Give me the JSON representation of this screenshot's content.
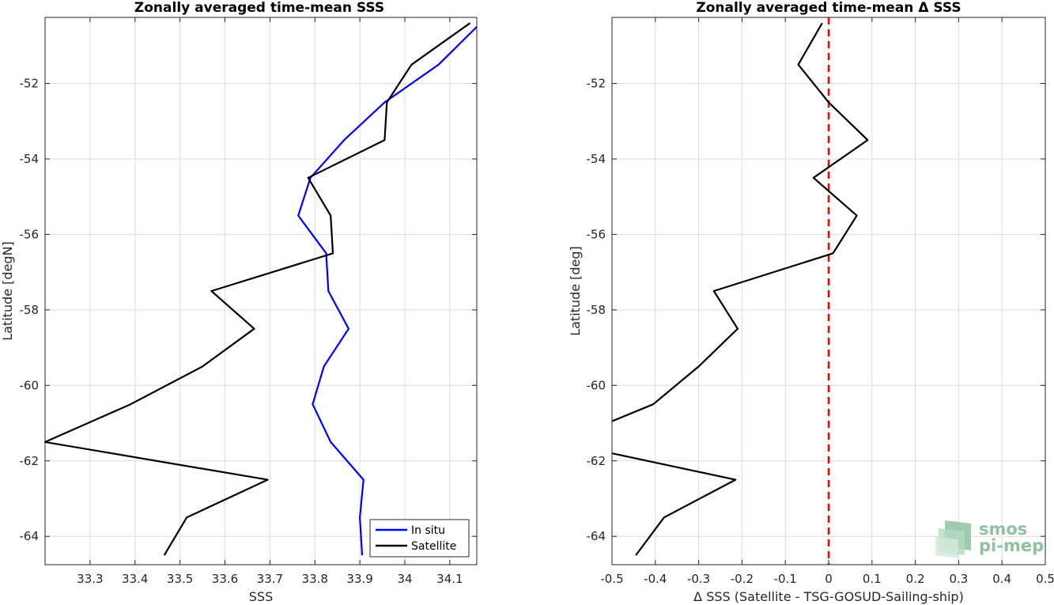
{
  "chart_data": [
    {
      "type": "line",
      "title": "Zonally averaged time-mean SSS",
      "xlabel": "SSS",
      "ylabel": "Latitude [degN]",
      "xlim": [
        33.2,
        34.16
      ],
      "ylim": [
        -64.75,
        -50.25
      ],
      "xticks": [
        33.3,
        33.4,
        33.5,
        33.6,
        33.7,
        33.8,
        33.9,
        34,
        34.1
      ],
      "xtick_labels": [
        "33.3",
        "33.4",
        "33.5",
        "33.6",
        "33.7",
        "33.8",
        "33.9",
        "34",
        "34.1"
      ],
      "yticks": [
        -64,
        -62,
        -60,
        -58,
        -56,
        -54,
        -52
      ],
      "ytick_labels": [
        "-64",
        "-62",
        "-60",
        "-58",
        "-56",
        "-54",
        "-52"
      ],
      "grid": true,
      "legend": "bottom-right",
      "series": [
        {
          "name": "In situ",
          "color": "#0000ff",
          "x": [
            33.905,
            33.9,
            33.908,
            33.835,
            33.795,
            33.82,
            33.875,
            33.83,
            33.825,
            33.763,
            33.79,
            33.865,
            33.955,
            34.075,
            34.16
          ],
          "y": [
            -64.5,
            -63.5,
            -62.5,
            -61.5,
            -60.5,
            -59.5,
            -58.5,
            -57.5,
            -56.5,
            -55.5,
            -54.5,
            -53.5,
            -52.5,
            -51.5,
            -50.5
          ]
        },
        {
          "name": "Satellite",
          "color": "#000000",
          "x": [
            33.465,
            33.515,
            33.695,
            33.2,
            33.39,
            33.55,
            33.665,
            33.57,
            33.84,
            33.835,
            33.785,
            33.955,
            33.96,
            34.015,
            34.145
          ],
          "y": [
            -64.5,
            -63.5,
            -62.5,
            -61.5,
            -60.5,
            -59.5,
            -58.5,
            -57.5,
            -56.5,
            -55.5,
            -54.5,
            -53.5,
            -52.5,
            -51.5,
            -50.4
          ]
        }
      ]
    },
    {
      "type": "line",
      "title": "Zonally averaged time-mean Δ SSS",
      "xlabel": "Δ SSS (Satellite - TSG-GOSUD-Sailing-ship)",
      "ylabel": "Latitude [deg]",
      "xlim": [
        -0.5,
        0.5
      ],
      "ylim": [
        -64.75,
        -50.25
      ],
      "xticks": [
        -0.5,
        -0.4,
        -0.3,
        -0.2,
        -0.1,
        0,
        0.1,
        0.2,
        0.3,
        0.4,
        0.5
      ],
      "xtick_labels": [
        "-0.5",
        "-0.4",
        "-0.3",
        "-0.2",
        "-0.1",
        "0",
        "0.1",
        "0.2",
        "0.3",
        "0.4",
        "0.5"
      ],
      "yticks": [
        -64,
        -62,
        -60,
        -58,
        -56,
        -54,
        -52
      ],
      "ytick_labels": [
        "-64",
        "-62",
        "-60",
        "-58",
        "-56",
        "-54",
        "-52"
      ],
      "grid": true,
      "reference_line": {
        "x": 0,
        "color": "#ff0000",
        "style": "dashed"
      },
      "series": [
        {
          "color": "#000000",
          "segments": [
            {
              "x": [
                -0.445,
                -0.38,
                -0.215,
                -0.5
              ],
              "y": [
                -64.5,
                -63.5,
                -62.5,
                -61.8
              ]
            },
            {
              "x": [
                -0.5,
                -0.405,
                -0.3,
                -0.21,
                -0.265,
                0.01,
                0.065,
                -0.035,
                0.09,
                0.0,
                -0.07,
                -0.015
              ],
              "y": [
                -60.95,
                -60.5,
                -59.5,
                -58.5,
                -57.5,
                -56.5,
                -55.5,
                -54.5,
                -53.5,
                -52.5,
                -51.5,
                -50.4
              ]
            }
          ]
        }
      ]
    }
  ],
  "logo": {
    "line1": "smos",
    "line2": "pi-mep",
    "color": "#8fc2a3"
  }
}
